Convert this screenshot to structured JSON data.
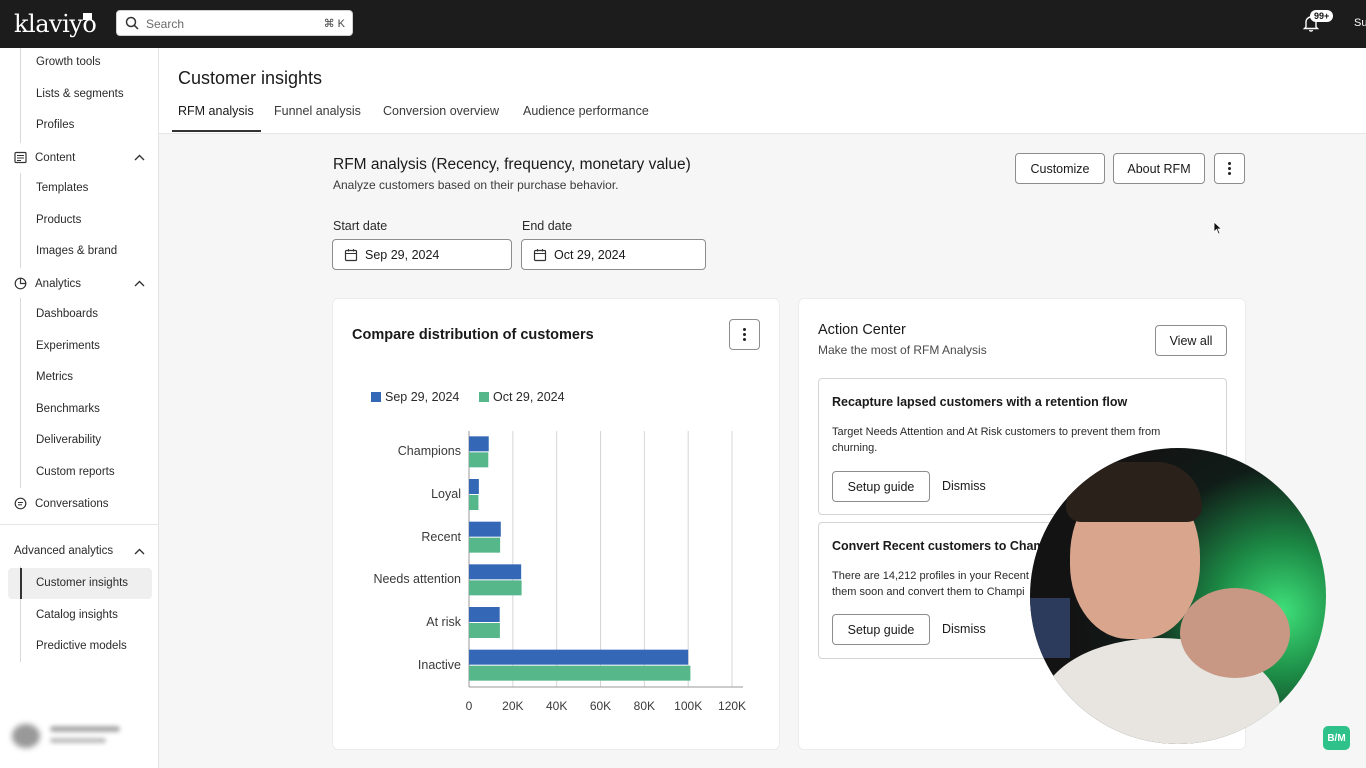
{
  "app": {
    "brand": "klaviyo",
    "search_placeholder": "Search",
    "search_shortcut": "⌘ K",
    "notification_count": "99+",
    "user_initials": "Su"
  },
  "sidebar": {
    "marketing_children": [
      "Growth tools",
      "Lists & segments",
      "Profiles"
    ],
    "content": {
      "label": "Content",
      "children": [
        "Templates",
        "Products",
        "Images & brand"
      ]
    },
    "analytics": {
      "label": "Analytics",
      "children": [
        "Dashboards",
        "Experiments",
        "Metrics",
        "Benchmarks",
        "Deliverability",
        "Custom reports"
      ]
    },
    "conversations": "Conversations",
    "advanced": {
      "label": "Advanced analytics",
      "children": [
        "Customer insights",
        "Catalog insights",
        "Predictive models"
      ],
      "active": "Customer insights"
    }
  },
  "page": {
    "title": "Customer insights",
    "tabs": [
      "RFM analysis",
      "Funnel analysis",
      "Conversion overview",
      "Audience performance"
    ],
    "active_tab": "RFM analysis"
  },
  "rfm": {
    "title": "RFM analysis (Recency, frequency, monetary value)",
    "subtitle": "Analyze customers based on their purchase behavior.",
    "customize": "Customize",
    "about": "About RFM",
    "start_label": "Start date",
    "start_value": "Sep 29, 2024",
    "end_label": "End date",
    "end_value": "Oct 29, 2024"
  },
  "chart_card": {
    "title": "Compare distribution of customers"
  },
  "chart_data": {
    "type": "bar",
    "orientation": "horizontal",
    "title": "Compare distribution of customers",
    "categories": [
      "Champions",
      "Loyal",
      "Recent",
      "Needs attention",
      "At risk",
      "Inactive"
    ],
    "series": [
      {
        "name": "Sep 29, 2024",
        "color": "#3467b5",
        "values": [
          9000,
          4500,
          14500,
          23800,
          14000,
          100000
        ]
      },
      {
        "name": "Oct 29, 2024",
        "color": "#56b88a",
        "values": [
          8800,
          4300,
          14200,
          24000,
          14100,
          101000
        ]
      }
    ],
    "xlim": [
      0,
      125000
    ],
    "xticks": [
      0,
      20000,
      40000,
      60000,
      80000,
      100000,
      120000
    ],
    "xtick_labels": [
      "0",
      "20K",
      "40K",
      "60K",
      "80K",
      "100K",
      "120K"
    ],
    "grid": "vertical",
    "legend_position": "top-left"
  },
  "action_center": {
    "title": "Action Center",
    "subtitle": "Make the most of RFM Analysis",
    "view_all": "View all",
    "items": [
      {
        "title": "Recapture lapsed customers with a retention flow",
        "desc": "Target Needs Attention and At Risk customers to prevent them from churning.",
        "setup": "Setup guide",
        "dismiss": "Dismiss"
      },
      {
        "title": "Convert Recent customers to Cham",
        "desc": "There are 14,212 profiles in your Recent them soon and convert them to Champi",
        "setup": "Setup guide",
        "dismiss": "Dismiss"
      }
    ]
  },
  "watermark": "B/M"
}
